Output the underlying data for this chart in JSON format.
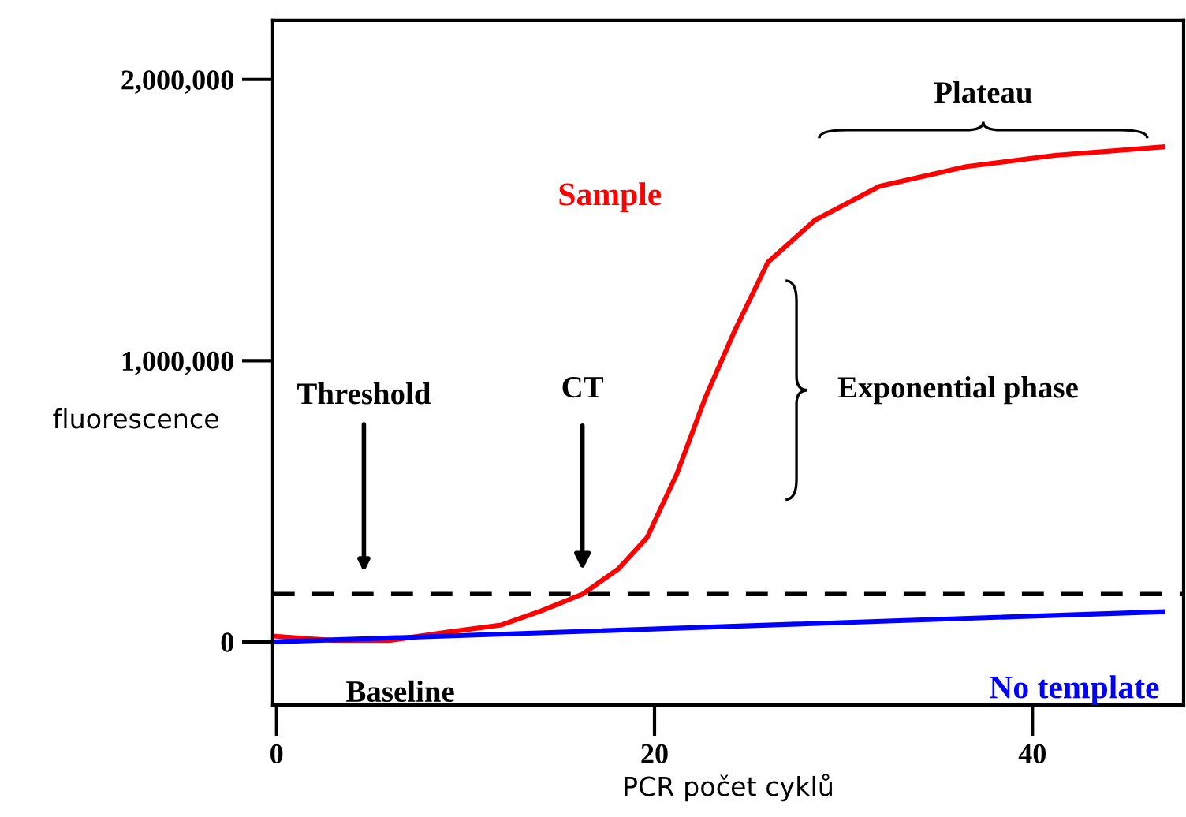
{
  "chart_data": {
    "type": "line",
    "xlabel": "PCR počet cyklů",
    "ylabel": "fluorescence",
    "xlim": [
      -0.2,
      48
    ],
    "ylim": [
      -225000,
      2210000
    ],
    "xticks": [
      0,
      20,
      40
    ],
    "yticks": [
      {
        "value": 0,
        "label": "0"
      },
      {
        "value": 1000000,
        "label": "1,000,000"
      },
      {
        "value": 2000000,
        "label": "2,000,000"
      }
    ],
    "series": [
      {
        "name": "Sample",
        "color": "#ff0000",
        "x": [
          -0.1,
          3,
          6,
          9.1,
          11.9,
          14,
          16.2,
          18.1,
          19.6,
          21.2,
          22.7,
          24.2,
          26,
          28.5,
          31.9,
          36.5,
          41.2,
          46.9
        ],
        "values": [
          20000,
          5000,
          5000,
          35000,
          60000,
          110000,
          170000,
          260000,
          370000,
          600000,
          870000,
          1100000,
          1350000,
          1500000,
          1620000,
          1690000,
          1730000,
          1760000
        ]
      },
      {
        "name": "No template",
        "color": "#0000ff",
        "x": [
          -0.1,
          46.9
        ],
        "values": [
          0,
          107000
        ]
      }
    ],
    "ref_lines": [
      {
        "axis": "y",
        "value": 170000,
        "label": "Threshold",
        "color": "#000000",
        "line_style": "dashed"
      }
    ],
    "annotations": [
      "CT",
      "Baseline",
      "Exponential phase",
      "Plateau"
    ],
    "grid": false,
    "legend": false,
    "marker": "none",
    "line_style": "solid"
  }
}
